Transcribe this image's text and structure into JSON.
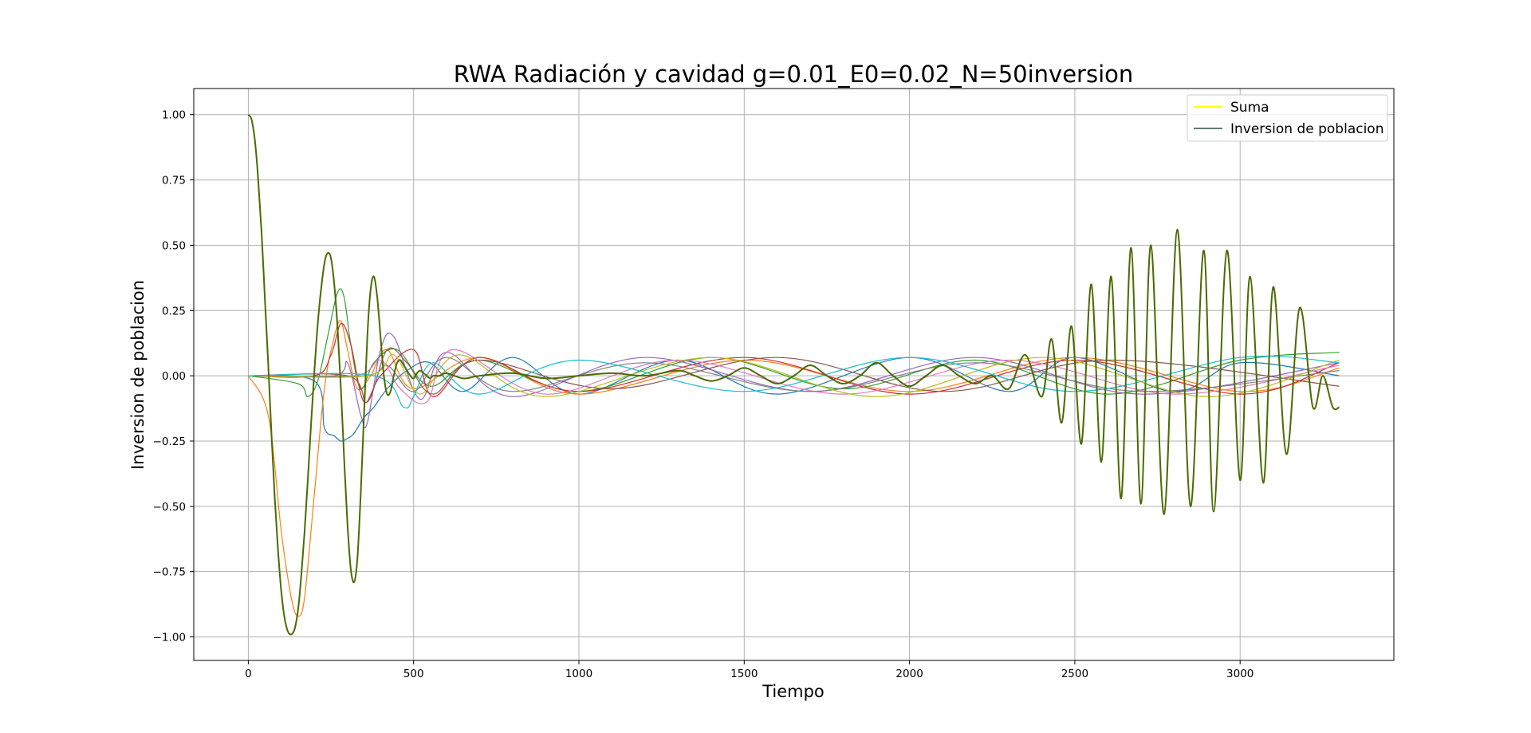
{
  "chart_data": {
    "type": "line",
    "title": "RWA Radiación y cavidad g=0.01_E0=0.02_N=50inversion",
    "xlabel": "Tiempo",
    "ylabel": "Inversion de poblacion",
    "xlim": [
      -165,
      3465
    ],
    "ylim": [
      -1.09,
      1.1
    ],
    "xticks": [
      0,
      500,
      1000,
      1500,
      2000,
      2500,
      3000
    ],
    "xtick_labels": [
      "0",
      "500",
      "1000",
      "1500",
      "2000",
      "2500",
      "3000"
    ],
    "yticks": [
      1.0,
      0.75,
      0.5,
      0.25,
      0.0,
      -0.25,
      -0.5,
      -0.75,
      -1.0
    ],
    "ytick_labels": [
      "1.00",
      "0.75",
      "0.50",
      "0.25",
      "0.00",
      "−0.25",
      "−0.50",
      "−0.75",
      "−1.00"
    ],
    "grid": true,
    "legend_position": "top-right",
    "series": [
      {
        "name": "Suma",
        "color": "#ffff00"
      },
      {
        "name": "Inversion de poblacion",
        "color": "#2f4f4f"
      }
    ],
    "main_curve": {
      "color": "#4a6b00",
      "x": [
        0,
        10,
        20,
        30,
        40,
        50,
        60,
        70,
        80,
        90,
        100,
        110,
        120,
        130,
        140,
        150,
        160,
        170,
        180,
        190,
        200,
        210,
        220,
        230,
        240,
        250,
        260,
        270,
        280,
        290,
        300,
        310,
        320,
        330,
        340,
        350,
        360,
        370,
        380,
        390,
        400,
        410,
        420,
        430,
        440,
        450,
        460,
        470,
        480,
        490,
        500,
        510,
        520,
        530,
        540,
        550,
        560,
        580,
        600,
        650,
        700,
        800,
        900,
        1000,
        1100,
        1200,
        1300,
        1350,
        1400,
        1450,
        1500,
        1550,
        1600,
        1650,
        1700,
        1750,
        1800,
        1850,
        1900,
        1950,
        2000,
        2050,
        2100,
        2150,
        2200,
        2250,
        2300,
        2350,
        2400,
        2430,
        2460,
        2490,
        2520,
        2550,
        2580,
        2610,
        2640,
        2670,
        2700,
        2730,
        2770,
        2810,
        2850,
        2890,
        2920,
        2960,
        3000,
        3030,
        3070,
        3100,
        3140,
        3180,
        3220,
        3250,
        3280,
        3300
      ],
      "y": [
        1.0,
        0.98,
        0.9,
        0.75,
        0.55,
        0.3,
        0.05,
        -0.22,
        -0.47,
        -0.67,
        -0.83,
        -0.93,
        -0.98,
        -0.99,
        -0.97,
        -0.9,
        -0.77,
        -0.6,
        -0.4,
        -0.18,
        0.02,
        0.2,
        0.33,
        0.43,
        0.47,
        0.45,
        0.35,
        0.18,
        -0.05,
        -0.32,
        -0.57,
        -0.74,
        -0.79,
        -0.7,
        -0.45,
        -0.15,
        0.15,
        0.33,
        0.38,
        0.3,
        0.15,
        0.0,
        -0.07,
        -0.06,
        0.0,
        0.05,
        0.06,
        0.04,
        0.02,
        0.0,
        -0.01,
        0.01,
        0.02,
        0.01,
        0.0,
        -0.01,
        0.0,
        0.0,
        0.01,
        -0.01,
        0.0,
        0.01,
        -0.01,
        0.0,
        0.01,
        0.0,
        0.02,
        0.0,
        -0.02,
        0.0,
        0.03,
        0.0,
        -0.03,
        0.0,
        0.04,
        0.0,
        -0.03,
        0.0,
        0.05,
        0.0,
        -0.04,
        0.0,
        0.04,
        0.0,
        -0.03,
        0.0,
        -0.05,
        0.08,
        -0.08,
        0.14,
        -0.18,
        0.19,
        -0.26,
        0.35,
        -0.33,
        0.38,
        -0.47,
        0.49,
        -0.49,
        0.5,
        -0.53,
        0.56,
        -0.5,
        0.48,
        -0.52,
        0.48,
        -0.4,
        0.38,
        -0.41,
        0.34,
        -0.3,
        0.26,
        -0.12,
        0.0,
        -0.12,
        -0.12
      ]
    },
    "background_series": [
      {
        "color": "#1f77b4",
        "x": [
          0,
          200,
          230,
          260,
          280,
          300,
          320,
          350,
          380,
          420,
          480,
          550,
          650,
          800,
          1000,
          1300,
          1600,
          2000,
          2300,
          2500,
          2800,
          3000,
          3300
        ],
        "y": [
          0.0,
          -0.02,
          -0.2,
          -0.23,
          -0.25,
          -0.24,
          -0.22,
          -0.16,
          -0.12,
          -0.05,
          0.02,
          0.05,
          -0.06,
          0.07,
          -0.07,
          0.06,
          -0.07,
          0.07,
          -0.06,
          0.07,
          -0.06,
          0.05,
          0.0
        ]
      },
      {
        "color": "#ff7f0e",
        "x": [
          0,
          60,
          100,
          130,
          150,
          170,
          200,
          230,
          260,
          280,
          300,
          330,
          370,
          420,
          500,
          700,
          1000,
          1500,
          2000,
          2500,
          3000,
          3300
        ],
        "y": [
          0.0,
          -0.15,
          -0.6,
          -0.85,
          -0.92,
          -0.85,
          -0.45,
          -0.05,
          0.15,
          0.21,
          0.1,
          -0.05,
          0.0,
          0.1,
          -0.05,
          0.07,
          -0.07,
          0.06,
          -0.06,
          0.07,
          -0.06,
          0.03
        ]
      },
      {
        "color": "#2ca02c",
        "x": [
          0,
          150,
          180,
          210,
          240,
          270,
          290,
          310,
          340,
          380,
          450,
          550,
          700,
          1000,
          1400,
          1800,
          2200,
          2600,
          3000,
          3300
        ],
        "y": [
          0.0,
          -0.03,
          -0.08,
          -0.02,
          0.15,
          0.32,
          0.3,
          0.12,
          -0.05,
          0.05,
          0.1,
          -0.04,
          0.06,
          -0.06,
          0.07,
          -0.05,
          0.06,
          -0.07,
          0.06,
          0.09
        ]
      },
      {
        "color": "#d62728",
        "x": [
          0,
          200,
          250,
          280,
          310,
          350,
          400,
          500,
          560,
          700,
          1000,
          1500,
          2000,
          2500,
          3000,
          3300
        ],
        "y": [
          0.0,
          0.0,
          0.08,
          0.2,
          0.12,
          -0.1,
          0.0,
          0.1,
          -0.08,
          0.07,
          -0.06,
          0.07,
          -0.07,
          0.06,
          -0.07,
          0.05
        ]
      },
      {
        "color": "#9467bd",
        "x": [
          0,
          260,
          300,
          340,
          360,
          400,
          440,
          520,
          600,
          800,
          1200,
          1700,
          2200,
          2700,
          3300
        ],
        "y": [
          0.0,
          0.0,
          0.05,
          -0.15,
          -0.18,
          0.1,
          0.15,
          -0.09,
          0.09,
          -0.08,
          0.07,
          -0.06,
          0.07,
          -0.07,
          0.05
        ]
      },
      {
        "color": "#8c564b",
        "x": [
          0,
          300,
          360,
          420,
          480,
          560,
          700,
          1100,
          1600,
          2100,
          2600,
          3300
        ],
        "y": [
          0.0,
          0.0,
          -0.1,
          0.1,
          0.05,
          -0.07,
          0.06,
          -0.05,
          0.07,
          -0.06,
          0.06,
          -0.04
        ]
      },
      {
        "color": "#e377c2",
        "x": [
          0,
          320,
          400,
          460,
          540,
          620,
          900,
          1300,
          1800,
          2300,
          2800,
          3300
        ],
        "y": [
          0.0,
          0.0,
          0.06,
          -0.05,
          -0.1,
          0.1,
          -0.07,
          0.06,
          -0.07,
          0.06,
          -0.07,
          0.04
        ]
      },
      {
        "color": "#7f7f7f",
        "x": [
          0,
          350,
          420,
          500,
          600,
          800,
          1200,
          1700,
          2200,
          2700,
          3300
        ],
        "y": [
          0.0,
          0.0,
          0.04,
          -0.06,
          0.07,
          -0.06,
          0.05,
          -0.06,
          0.05,
          -0.06,
          0.02
        ]
      },
      {
        "color": "#bcbd22",
        "x": [
          0,
          360,
          440,
          520,
          640,
          900,
          1400,
          1900,
          2400,
          2900,
          3300
        ],
        "y": [
          0.0,
          0.0,
          0.08,
          -0.07,
          0.08,
          -0.08,
          0.07,
          -0.08,
          0.07,
          -0.08,
          0.06
        ]
      },
      {
        "color": "#17becf",
        "x": [
          0,
          380,
          470,
          500,
          560,
          700,
          1000,
          1500,
          2000,
          2500,
          3000,
          3300
        ],
        "y": [
          0.0,
          0.0,
          -0.12,
          -0.08,
          0.05,
          -0.07,
          0.06,
          -0.06,
          0.07,
          -0.06,
          0.07,
          0.05
        ]
      }
    ]
  }
}
